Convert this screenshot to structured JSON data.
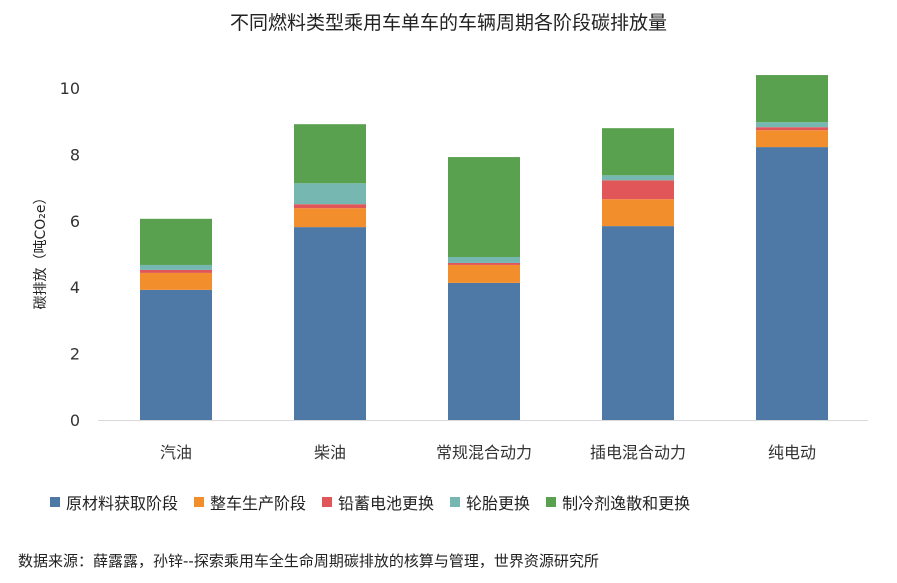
{
  "chart_data": {
    "type": "bar",
    "stacked": true,
    "title": "不同燃料类型乘用车单车的车辆周期各阶段碳排放量",
    "ylabel": "碳排放（吨CO₂e）",
    "xlabel": "",
    "ylim": [
      0,
      10
    ],
    "yticks": [
      0,
      2,
      4,
      6,
      8,
      10
    ],
    "grid": false,
    "legend_position": "bottom",
    "categories": [
      "汽油",
      "柴油",
      "常规混合动力",
      "插电混合动力",
      "纯电动"
    ],
    "series": [
      {
        "name": "原材料获取阶段",
        "color": "#4e79a7",
        "values": [
          3.92,
          5.81,
          4.13,
          5.84,
          8.22
        ]
      },
      {
        "name": "整车生产阶段",
        "color": "#f28e2b",
        "values": [
          0.51,
          0.57,
          0.54,
          0.81,
          0.51
        ]
      },
      {
        "name": "铅蓄电池更换",
        "color": "#e15759",
        "values": [
          0.09,
          0.12,
          0.06,
          0.57,
          0.09
        ]
      },
      {
        "name": "轮胎更换",
        "color": "#76b7b2",
        "values": [
          0.15,
          0.63,
          0.18,
          0.15,
          0.15
        ]
      },
      {
        "name": "制冷剂逸散和更换",
        "color": "#59a14f",
        "values": [
          1.39,
          1.78,
          3.01,
          1.42,
          1.42
        ]
      }
    ]
  },
  "source": "数据来源：薛露露，孙锌--探索乘用车全生命周期碳排放的核算与管理，世界资源研究所"
}
